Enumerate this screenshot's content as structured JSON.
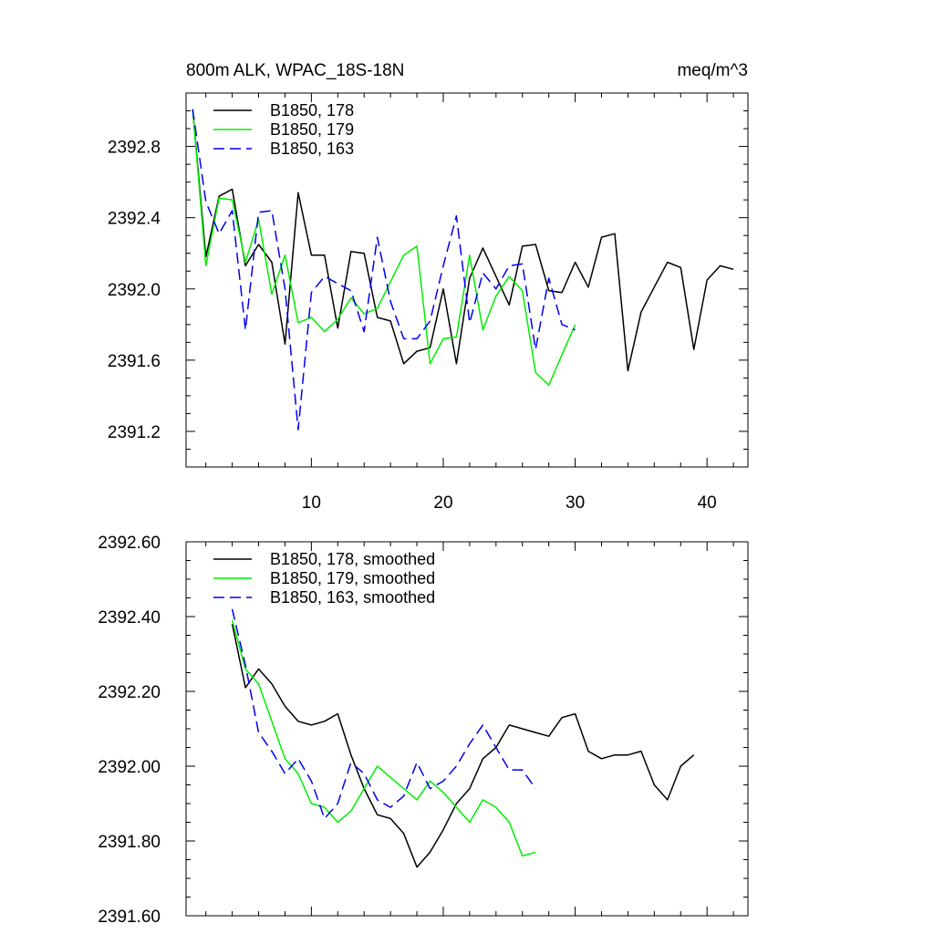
{
  "chart_data": [
    {
      "type": "line",
      "title": "800m ALK, WPAC_18S-18N",
      "units": "meq/m^3",
      "xlim": [
        0.5,
        43.1
      ],
      "ylim": [
        2391.0,
        2393.1
      ],
      "xticks": [
        10,
        20,
        30,
        40
      ],
      "xtick_labels": [
        "10",
        "20",
        "30",
        "40"
      ],
      "yticks": [
        2391.2,
        2391.6,
        2392.0,
        2392.4,
        2392.8
      ],
      "ytick_labels": [
        "2391.2",
        "2391.6",
        "2392.0",
        "2392.4",
        "2392.8"
      ],
      "legend_position": "top-left",
      "grid": false,
      "series": [
        {
          "name": "B1850, 178",
          "color": "#000000",
          "dash": "solid",
          "x": [
            1,
            2,
            3,
            4,
            5,
            6,
            7,
            8,
            9,
            10,
            11,
            12,
            13,
            14,
            15,
            16,
            17,
            18,
            19,
            20,
            21,
            22,
            23,
            24,
            25,
            26,
            27,
            28,
            29,
            30,
            31,
            32,
            33,
            34,
            35,
            36,
            37,
            38,
            39,
            40,
            41,
            42
          ],
          "values": [
            2393.01,
            2392.18,
            2392.52,
            2392.56,
            2392.13,
            2392.25,
            2392.15,
            2391.69,
            2392.54,
            2392.19,
            2392.19,
            2391.78,
            2392.21,
            2392.2,
            2391.84,
            2391.82,
            2391.58,
            2391.65,
            2391.67,
            2392.0,
            2391.58,
            2392.06,
            2392.23,
            2392.07,
            2391.91,
            2392.24,
            2392.25,
            2391.99,
            2391.98,
            2392.15,
            2392.01,
            2392.29,
            2392.31,
            2391.54,
            2391.87,
            2392.01,
            2392.15,
            2392.12,
            2391.66,
            2392.05,
            2392.13,
            2392.11
          ]
        },
        {
          "name": "B1850, 179",
          "color": "#00ee00",
          "dash": "solid",
          "x": [
            1,
            2,
            3,
            4,
            5,
            6,
            7,
            8,
            9,
            10,
            11,
            12,
            13,
            14,
            15,
            16,
            17,
            18,
            19,
            20,
            21,
            22,
            23,
            24,
            25,
            26,
            27,
            28,
            29,
            30
          ],
          "values": [
            2393.01,
            2392.13,
            2392.51,
            2392.5,
            2392.15,
            2392.39,
            2391.97,
            2392.19,
            2391.81,
            2391.84,
            2391.76,
            2391.83,
            2391.95,
            2391.86,
            2391.89,
            2392.04,
            2392.19,
            2392.24,
            2391.58,
            2391.72,
            2391.73,
            2392.19,
            2391.77,
            2391.96,
            2392.07,
            2391.99,
            2391.53,
            2391.46,
            2391.63,
            2391.8
          ]
        },
        {
          "name": "B1850, 163",
          "color": "#0000ee",
          "dash": "dashed",
          "x": [
            1,
            2,
            3,
            4,
            5,
            6,
            7,
            8,
            9,
            10,
            11,
            12,
            13,
            14,
            15,
            16,
            17,
            18,
            19,
            20,
            21,
            22,
            23,
            24,
            25,
            26,
            27,
            28,
            29,
            30
          ],
          "values": [
            2393.01,
            2392.49,
            2392.31,
            2392.44,
            2391.77,
            2392.43,
            2392.44,
            2392.0,
            2391.21,
            2391.98,
            2392.07,
            2392.03,
            2391.99,
            2391.76,
            2392.29,
            2391.93,
            2391.72,
            2391.72,
            2391.82,
            2392.13,
            2392.41,
            2391.81,
            2392.09,
            2392.0,
            2392.13,
            2392.14,
            2391.66,
            2392.06,
            2391.8,
            2391.77
          ]
        }
      ]
    },
    {
      "type": "line",
      "xlim": [
        0.5,
        43.1
      ],
      "ylim": [
        2391.6,
        2392.6
      ],
      "xticks": [
        10,
        20,
        30,
        40
      ],
      "yticks": [
        2391.6,
        2391.8,
        2392.0,
        2392.2,
        2392.4,
        2392.6
      ],
      "ytick_labels": [
        "2391.60",
        "2391.80",
        "2392.00",
        "2392.20",
        "2392.40",
        "2392.60"
      ],
      "legend_position": "top-left",
      "grid": false,
      "series": [
        {
          "name": "B1850, 178, smoothed",
          "color": "#000000",
          "dash": "solid",
          "x": [
            4,
            5,
            6,
            7,
            8,
            9,
            10,
            11,
            12,
            13,
            14,
            15,
            16,
            17,
            18,
            19,
            20,
            21,
            22,
            23,
            24,
            25,
            26,
            27,
            28,
            29,
            30,
            31,
            32,
            33,
            34,
            35,
            36,
            37,
            38,
            39
          ],
          "values": [
            2392.38,
            2392.21,
            2392.26,
            2392.22,
            2392.16,
            2392.12,
            2392.11,
            2392.12,
            2392.14,
            2392.03,
            2391.94,
            2391.87,
            2391.86,
            2391.82,
            2391.73,
            2391.77,
            2391.83,
            2391.9,
            2391.94,
            2392.02,
            2392.05,
            2392.11,
            2392.1,
            2392.09,
            2392.08,
            2392.13,
            2392.14,
            2392.04,
            2392.02,
            2392.03,
            2392.03,
            2392.04,
            2391.95,
            2391.91,
            2392.0,
            2392.03
          ]
        },
        {
          "name": "B1850, 179, smoothed",
          "color": "#00ee00",
          "dash": "solid",
          "x": [
            4,
            5,
            6,
            7,
            8,
            9,
            10,
            11,
            12,
            13,
            14,
            15,
            16,
            17,
            18,
            19,
            20,
            21,
            22,
            23,
            24,
            25,
            26,
            27
          ],
          "values": [
            2392.39,
            2392.26,
            2392.22,
            2392.12,
            2392.02,
            2391.98,
            2391.9,
            2391.89,
            2391.85,
            2391.88,
            2391.94,
            2392.0,
            2391.97,
            2391.94,
            2391.91,
            2391.96,
            2391.93,
            2391.89,
            2391.85,
            2391.91,
            2391.89,
            2391.85,
            2391.76,
            2391.77
          ]
        },
        {
          "name": "B1850, 163, smoothed",
          "color": "#0000ee",
          "dash": "dashed",
          "x": [
            4,
            5,
            6,
            7,
            8,
            9,
            10,
            11,
            12,
            13,
            14,
            15,
            16,
            17,
            18,
            19,
            20,
            21,
            22,
            23,
            24,
            25,
            26,
            27
          ],
          "values": [
            2392.42,
            2392.27,
            2392.09,
            2392.04,
            2391.98,
            2392.02,
            2391.96,
            2391.86,
            2391.9,
            2392.01,
            2391.98,
            2391.91,
            2391.89,
            2391.92,
            2392.01,
            2391.94,
            2391.96,
            2392.0,
            2392.06,
            2392.11,
            2392.05,
            2391.99,
            2391.99,
            2391.94
          ]
        }
      ]
    }
  ]
}
